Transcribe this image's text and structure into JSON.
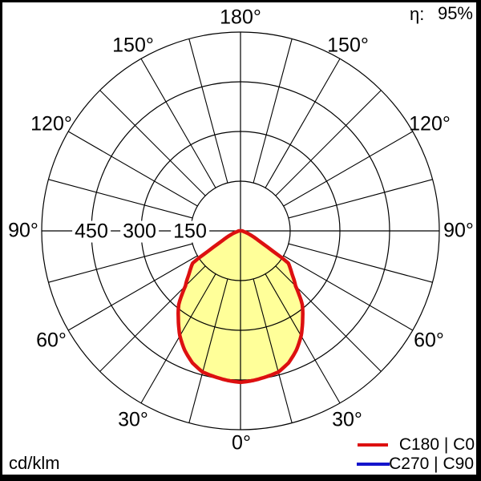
{
  "header": {
    "efficiency_label": "η:",
    "efficiency_value": "95%"
  },
  "footer": {
    "unit_label": "cd/klm"
  },
  "polar": {
    "angle_labels": {
      "top": "180°",
      "left_150": "150°",
      "right_150": "150°",
      "left_120": "120°",
      "right_120": "120°",
      "left_90": "90°",
      "right_90": "90°",
      "left_60": "60°",
      "right_60": "60°",
      "left_30": "30°",
      "right_30": "30°",
      "bottom": "0°"
    },
    "ring_labels": [
      "450",
      "300",
      "150"
    ]
  },
  "legend": {
    "items": [
      {
        "label": "C180 | C0",
        "color": "#dd1010"
      },
      {
        "label": "C270 | C90",
        "color": "#1414cc"
      }
    ]
  },
  "chart_data": {
    "type": "polar_intensity",
    "unit": "cd/klm",
    "efficiency_percent": 95,
    "ring_values": [
      150,
      300,
      450,
      600
    ],
    "angle_grid_step_deg": 15,
    "angle_tick_labels_deg": [
      0,
      30,
      60,
      90,
      120,
      150,
      180
    ],
    "symmetric_about_vertical": true,
    "grid_color": "#000000",
    "series": [
      {
        "name": "C180 | C0",
        "color": "#dd1010",
        "fill": "#ffff99",
        "profile_deg_cdklm": [
          [
            0,
            457
          ],
          [
            5,
            453
          ],
          [
            10,
            447
          ],
          [
            15,
            441
          ],
          [
            20,
            424
          ],
          [
            25,
            398
          ],
          [
            30,
            366
          ],
          [
            35,
            327
          ],
          [
            40,
            290
          ],
          [
            45,
            235
          ],
          [
            50,
            203
          ],
          [
            53,
            188
          ],
          [
            55,
            179
          ],
          [
            56,
            174
          ],
          [
            57,
            150
          ],
          [
            58,
            114
          ],
          [
            59,
            95
          ],
          [
            60,
            80
          ],
          [
            61,
            68
          ],
          [
            62,
            60
          ],
          [
            64,
            50
          ],
          [
            66,
            40
          ],
          [
            68,
            32
          ],
          [
            70,
            26
          ],
          [
            73,
            18
          ],
          [
            76,
            12
          ],
          [
            80,
            8
          ],
          [
            85,
            6
          ],
          [
            90,
            5
          ]
        ]
      },
      {
        "name": "C270 | C90",
        "color": "#1414cc",
        "fill": "none",
        "profile_deg_cdklm": [
          [
            0,
            457
          ],
          [
            5,
            453
          ],
          [
            10,
            447
          ],
          [
            15,
            441
          ],
          [
            20,
            424
          ],
          [
            25,
            398
          ],
          [
            30,
            366
          ],
          [
            35,
            327
          ],
          [
            40,
            290
          ],
          [
            45,
            235
          ],
          [
            50,
            203
          ],
          [
            53,
            188
          ],
          [
            55,
            179
          ],
          [
            56,
            174
          ],
          [
            57,
            150
          ],
          [
            58,
            114
          ],
          [
            59,
            95
          ],
          [
            60,
            80
          ],
          [
            61,
            68
          ],
          [
            62,
            60
          ],
          [
            64,
            50
          ],
          [
            66,
            40
          ],
          [
            68,
            32
          ],
          [
            70,
            26
          ],
          [
            73,
            18
          ],
          [
            76,
            12
          ],
          [
            80,
            8
          ],
          [
            85,
            6
          ],
          [
            90,
            5
          ]
        ]
      }
    ]
  }
}
